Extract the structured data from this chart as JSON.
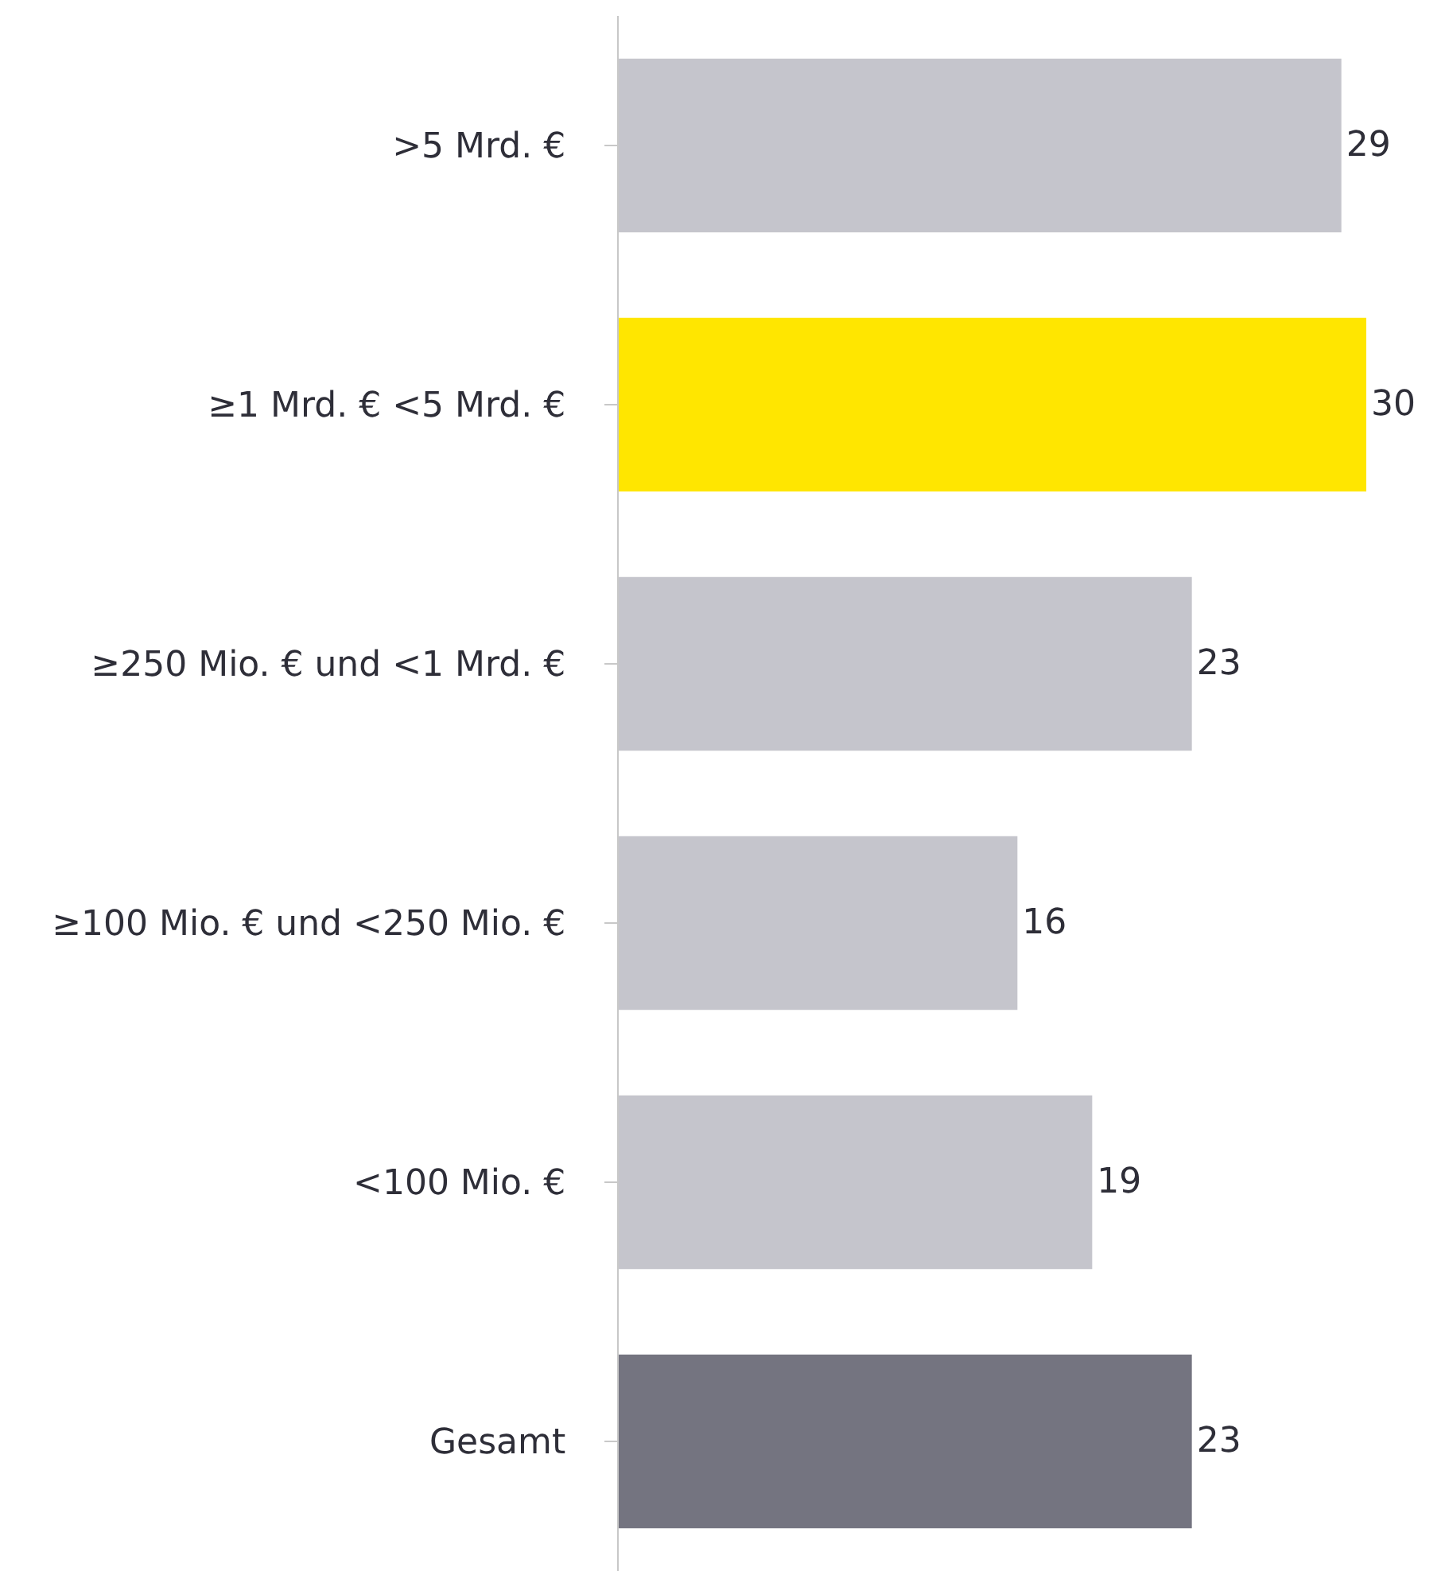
{
  "chart_data": {
    "type": "bar",
    "orientation": "horizontal",
    "categories": [
      ">5 Mrd. €",
      "≥1 Mrd. € <5 Mrd. €",
      "≥250 Mio. € und <1 Mrd. €",
      "≥100 Mio. € und <250 Mio. €",
      "<100 Mio. €",
      "Gesamt"
    ],
    "values": [
      29,
      30,
      23,
      16,
      19,
      23
    ],
    "colors": [
      "#c5c5cc",
      "#ffe600",
      "#c5c5cc",
      "#c5c5cc",
      "#c5c5cc",
      "#747480"
    ],
    "data_labels": true,
    "xlim": [
      0,
      30
    ],
    "tick_labels": "y"
  }
}
